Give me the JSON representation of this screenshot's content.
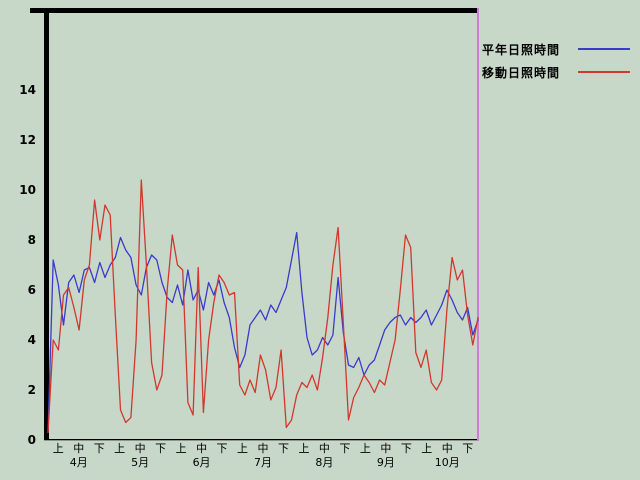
{
  "chart_data": {
    "type": "line",
    "title": "",
    "xlabel": "",
    "ylabel": "",
    "ylim": [
      0,
      17
    ],
    "yticks": [
      0,
      2,
      4,
      6,
      8,
      10,
      12,
      14
    ],
    "period_labels": [
      "上",
      "中",
      "下"
    ],
    "months": [
      "4月",
      "5月",
      "6月",
      "7月",
      "8月",
      "9月",
      "10月"
    ],
    "grid": false,
    "legend_position": "top-right",
    "axis_color": "#000000",
    "marker_line_color": "#cc7fd0",
    "background_color": "#c8d8c8",
    "legend": [
      {
        "name": "平年日照時間",
        "color": "#3a3acc"
      },
      {
        "name": "移動日照時間",
        "color": "#d2372d"
      }
    ],
    "series": [
      {
        "name": "平年日照時間",
        "color": "#3a3acc",
        "values": [
          0.3,
          7.2,
          6.2,
          4.6,
          6.3,
          6.6,
          5.9,
          6.8,
          6.9,
          6.3,
          7.1,
          6.5,
          7.0,
          7.3,
          8.1,
          7.6,
          7.3,
          6.2,
          5.8,
          6.9,
          7.4,
          7.2,
          6.3,
          5.7,
          5.5,
          6.2,
          5.4,
          6.8,
          5.6,
          6.0,
          5.2,
          6.3,
          5.8,
          6.4,
          5.5,
          4.9,
          3.7,
          2.9,
          3.4,
          4.6,
          4.9,
          5.2,
          4.8,
          5.4,
          5.1,
          5.6,
          6.1,
          7.2,
          8.3,
          5.9,
          4.1,
          3.4,
          3.6,
          4.1,
          3.8,
          4.2,
          6.5,
          4.3,
          3.0,
          2.9,
          3.3,
          2.6,
          3.0,
          3.2,
          3.8,
          4.4,
          4.7,
          4.9,
          5.0,
          4.6,
          4.9,
          4.7,
          4.9,
          5.2,
          4.6,
          5.0,
          5.4,
          6.0,
          5.6,
          5.1,
          4.8,
          5.3,
          4.2,
          4.8
        ]
      },
      {
        "name": "移動日照時間",
        "color": "#d2372d",
        "values": [
          0.3,
          4.0,
          3.6,
          5.8,
          6.1,
          5.3,
          4.4,
          6.4,
          7.0,
          9.6,
          8.0,
          9.4,
          9.0,
          5.0,
          1.2,
          0.7,
          0.9,
          4.0,
          10.4,
          7.0,
          3.1,
          2.0,
          2.6,
          6.0,
          8.2,
          7.0,
          6.8,
          1.5,
          1.0,
          6.9,
          1.1,
          4.0,
          5.5,
          6.6,
          6.3,
          5.8,
          5.9,
          2.2,
          1.8,
          2.4,
          1.9,
          3.4,
          2.8,
          1.6,
          2.1,
          3.6,
          0.5,
          0.8,
          1.8,
          2.3,
          2.1,
          2.6,
          2.0,
          3.3,
          4.9,
          7.0,
          8.5,
          4.7,
          0.8,
          1.7,
          2.1,
          2.6,
          2.3,
          1.9,
          2.4,
          2.2,
          3.1,
          4.0,
          6.0,
          8.2,
          7.7,
          3.5,
          2.9,
          3.6,
          2.3,
          2.0,
          2.4,
          5.2,
          7.3,
          6.4,
          6.8,
          5.0,
          3.8,
          4.9
        ]
      }
    ]
  }
}
